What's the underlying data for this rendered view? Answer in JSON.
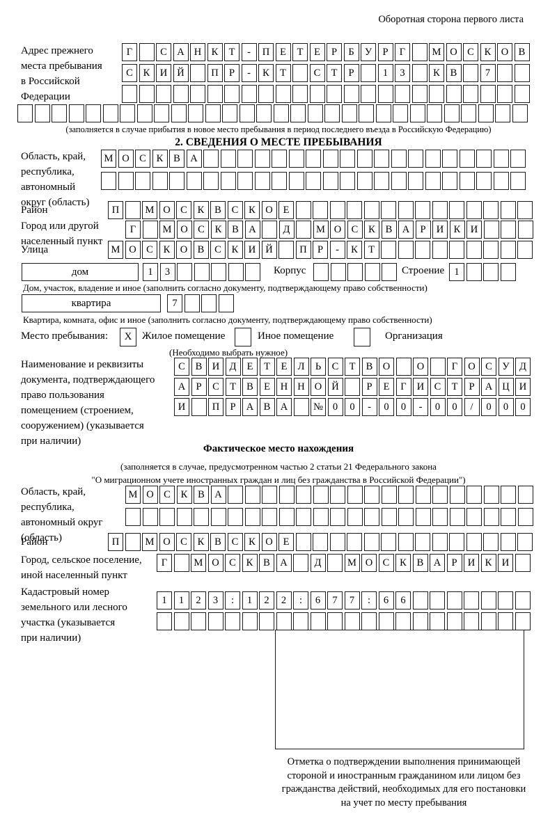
{
  "page": {
    "header_note": "Оборотная сторона первого листа"
  },
  "prev_address": {
    "label": "Адрес прежнего\nместа пребывания\nв Российской\nФедерации",
    "rows": [
      "Г САНКТ-ПЕТЕРБУРГ МОСКОВ",
      "СКИЙ ПР-КТ СТР 13 КВ 7",
      "",
      ""
    ],
    "note": "(заполняется в случае прибытия в новое место пребывания в период последнего въезда в Российскую Федерацию)"
  },
  "section2": {
    "title": "2. СВЕДЕНИЯ О МЕСТЕ ПРЕБЫВАНИЯ",
    "region": {
      "label": "Область, край,\nреспублика,\nавтономный\nокруг (область)",
      "rows": [
        "МОСКВА",
        ""
      ]
    },
    "district": {
      "label": "Район",
      "row": "П МОСКВСКОЕ"
    },
    "city": {
      "label": "Город или другой\nнаселенный пункт",
      "row": "Г МОСКВА Д МОСКВАРИКИ"
    },
    "street": {
      "label": "Улица",
      "row": "МОСКОВСКИЙ ПР-КТ"
    },
    "house": {
      "box_label": "дом",
      "cells": "13",
      "korpus_label": "Корпус",
      "korpus_cells": "",
      "stroenie_label": "Строение",
      "stroenie_cells": "1",
      "note": "Дом, участок, владение и иное (заполнить согласно документу, подтверждающему право собственности)"
    },
    "apartment": {
      "box_label": "квартира",
      "cells": "7",
      "note": "Квартира, комната, офис и иное (заполнить согласно документу, подтверждающему право собственности)"
    },
    "place_type": {
      "label": "Место пребывания:",
      "options": [
        {
          "mark": "X",
          "label": "Жилое помещение"
        },
        {
          "mark": "",
          "label": "Иное помещение"
        },
        {
          "mark": "",
          "label": "Организация"
        }
      ],
      "note": "(Необходимо выбрать нужное)"
    },
    "document": {
      "label": "Наименование и реквизиты\nдокумента, подтверждающего\nправо пользования\nпомещением (строением,\nсооружением) (указывается\nпри наличии)",
      "rows": [
        "СВИДЕТЕЛЬСТВО О ГОСУД",
        "АРСТВЕННОЙ РЕГИСТРАЦИ",
        "И ПРАВА №00-00-00/000"
      ]
    }
  },
  "actual_location": {
    "title": "Фактическое место нахождения",
    "note": "(заполняется в случае, предусмотренном частью 2 статьи 21 Федерального закона\n\"О миграционном учете иностранных граждан и лиц без гражданства в Российской Федерации\")",
    "region": {
      "label": "Область, край,\nреспублика,\nавтономный округ\n(область)",
      "rows": [
        "МОСКВА",
        ""
      ]
    },
    "district": {
      "label": "Район",
      "row": "П МОСКВСКОЕ"
    },
    "city": {
      "label": "Город, сельское поселение,\nиной населенный пункт",
      "row": "Г МОСКВА Д МОСКВАРИКИ"
    },
    "cadastral": {
      "label": "Кадастровый номер\nземельного или лесного\nучастка (указывается\nпри наличии)",
      "rows": [
        "1123:122:677:66",
        ""
      ]
    },
    "stamp_note": "Отметка о подтверждении выполнения принимающей\nстороной и иностранным гражданином или лицом без\nгражданства действий, необходимых для его постановки\nна учет по месту пребывания"
  }
}
